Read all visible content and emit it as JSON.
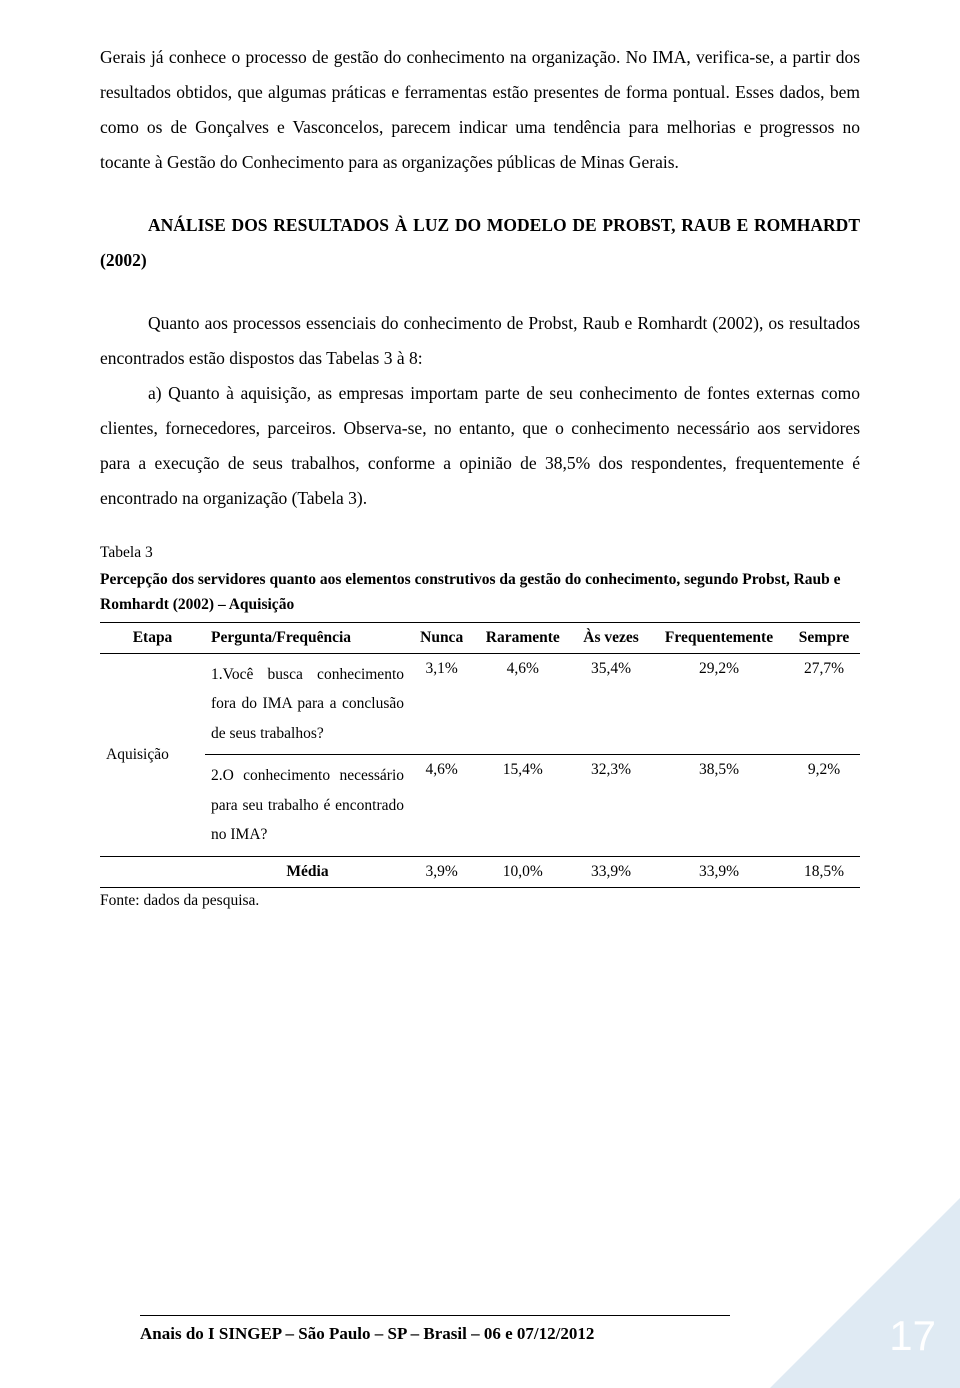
{
  "paragraphs": {
    "p1": "Gerais já conhece o processo de gestão do conhecimento na organização. No IMA, verifica-se, a partir dos resultados obtidos, que algumas práticas e ferramentas estão presentes de forma pontual. Esses dados, bem como os de Gonçalves e Vasconcelos, parecem indicar uma tendência para melhorias e progressos no tocante à Gestão do Conhecimento para as organizações públicas de Minas Gerais.",
    "heading": "ANÁLISE DOS RESULTADOS À LUZ DO MODELO DE PROBST, RAUB E ROMHARDT (2002)",
    "p2": "Quanto aos processos essenciais do conhecimento de Probst, Raub e Romhardt (2002), os resultados encontrados estão dispostos das Tabelas 3 à 8:",
    "p3": "a) Quanto à aquisição, as empresas importam parte de seu conhecimento de fontes externas como clientes, fornecedores, parceiros. Observa-se, no entanto, que o conhecimento necessário aos servidores para a execução de seus trabalhos, conforme a opinião de 38,5% dos respondentes, frequentemente é encontrado na organização (Tabela 3)."
  },
  "table": {
    "caption": "Tabela 3",
    "subcaption": "Percepção dos servidores quanto aos elementos construtivos da gestão do conhecimento, segundo Probst, Raub e Romhardt (2002) – Aquisição",
    "headers": [
      "Etapa",
      "Pergunta/Frequência",
      "Nunca",
      "Raramente",
      "Às vezes",
      "Frequentemente",
      "Sempre"
    ],
    "etapa": "Aquisição",
    "rows": [
      {
        "pergunta": "1.Você busca conhecimento fora do IMA para a conclusão de seus trabalhos?",
        "vals": [
          "3,1%",
          "4,6%",
          "35,4%",
          "29,2%",
          "27,7%"
        ]
      },
      {
        "pergunta": "2.O conhecimento necessário para seu trabalho é encontrado no IMA?",
        "vals": [
          "4,6%",
          "15,4%",
          "32,3%",
          "38,5%",
          "9,2%"
        ]
      }
    ],
    "media_label": "Média",
    "media_vals": [
      "3,9%",
      "10,0%",
      "33,9%",
      "33,9%",
      "18,5%"
    ],
    "fonte": "Fonte: dados da pesquisa."
  },
  "footer": {
    "text": "Anais do I SINGEP – São Paulo – SP – Brasil – 06 e 07/12/2012",
    "page": "17"
  }
}
